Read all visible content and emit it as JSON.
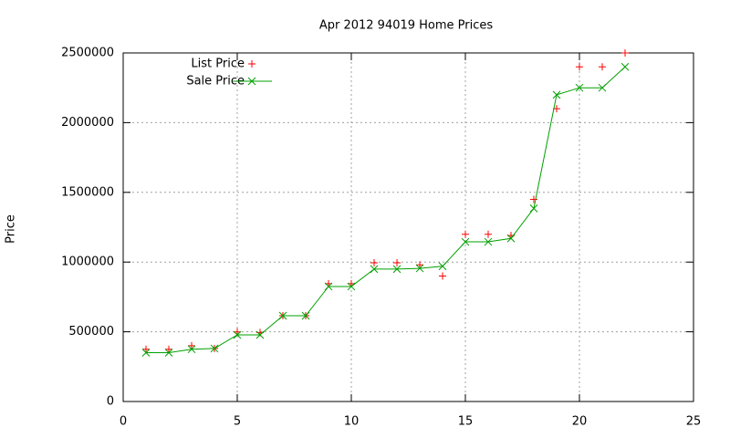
{
  "chart_data": {
    "type": "line",
    "title": "Apr 2012 94019 Home Prices",
    "y_label": "Price",
    "x": [
      1,
      2,
      3,
      4,
      5,
      6,
      7,
      8,
      9,
      10,
      11,
      12,
      13,
      14,
      15,
      16,
      17,
      18,
      19,
      20,
      21,
      22
    ],
    "series": [
      {
        "name": "List Price",
        "color": "#ff0000",
        "style": "points",
        "marker": "plus",
        "values": [
          375000,
          375000,
          400000,
          380000,
          499000,
          495000,
          615000,
          615000,
          845000,
          845000,
          995000,
          995000,
          980000,
          900000,
          1199000,
          1199000,
          1190000,
          1450000,
          2100000,
          2400000,
          2400000,
          2500000
        ]
      },
      {
        "name": "Sale Price",
        "color": "#00a000",
        "style": "linespoints",
        "marker": "cross",
        "values": [
          350000,
          350000,
          375000,
          380000,
          478000,
          478000,
          615000,
          615000,
          825000,
          825000,
          950000,
          950000,
          955000,
          970000,
          1145000,
          1145000,
          1170000,
          1385000,
          2200000,
          2250000,
          2250000,
          2400000
        ]
      }
    ],
    "xlim": [
      0,
      25
    ],
    "xticks": [
      0,
      5,
      10,
      15,
      20,
      25
    ],
    "ylim": [
      0,
      2500000
    ],
    "yticks": [
      0,
      500000,
      1000000,
      1500000,
      2000000,
      2500000
    ],
    "grid": true,
    "legend": "top-left"
  }
}
